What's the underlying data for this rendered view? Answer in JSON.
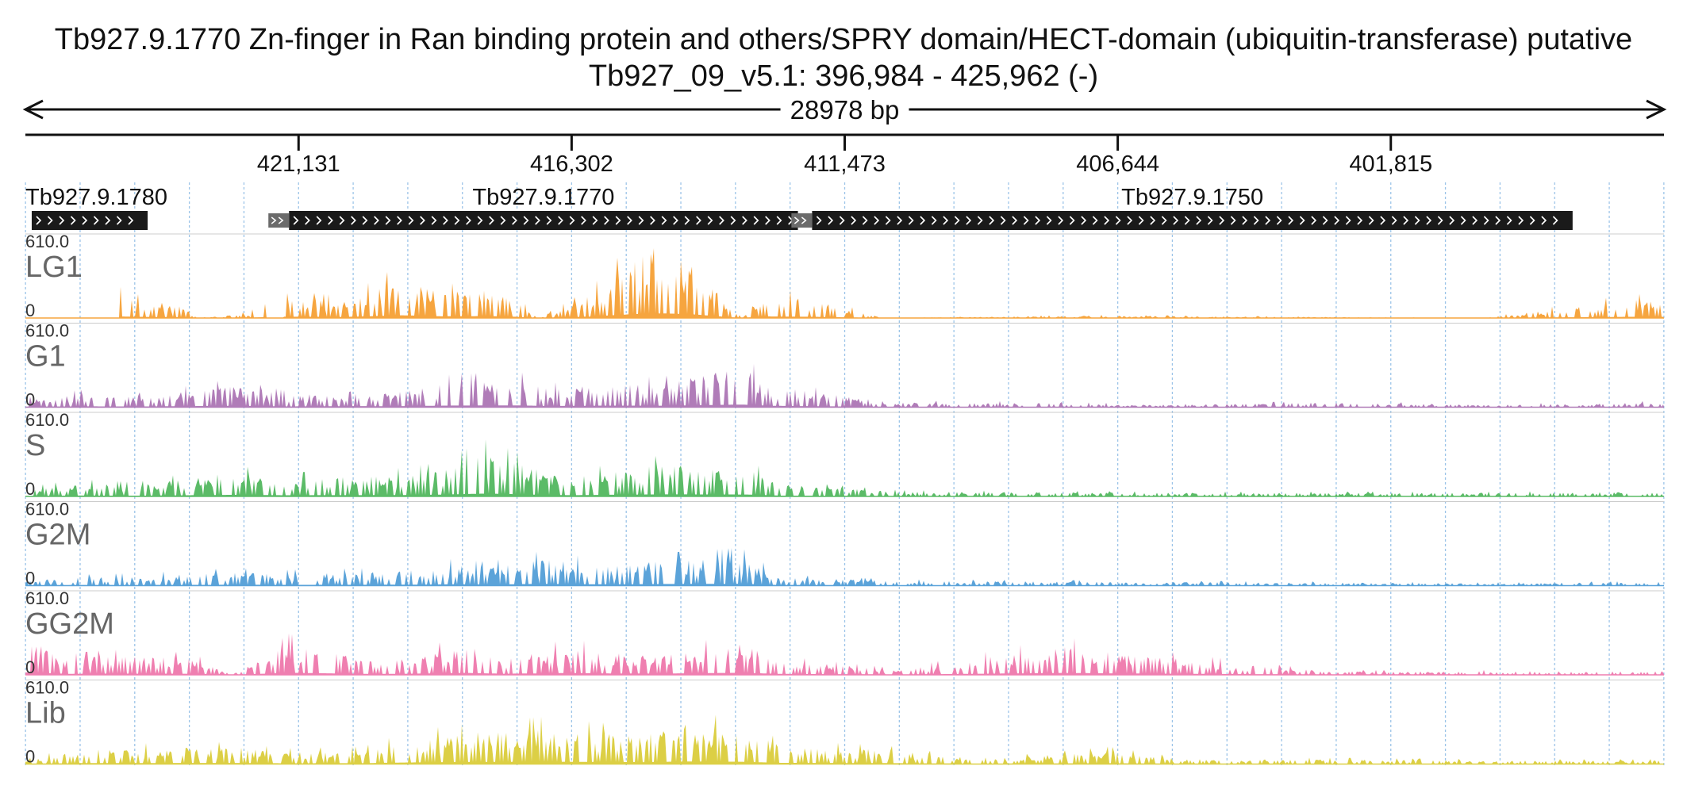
{
  "header": {
    "gene_title": "Tb927.9.1770  Zn-finger in Ran binding protein and others/SPRY domain/HECT-domain (ubiquitin-transferase)  putative",
    "locus": "Tb927_09_v5.1: 396,984 - 425,962 (-)",
    "span_label": "28978 bp"
  },
  "axis": {
    "ticks": [
      "421,131",
      "416,302",
      "411,473",
      "406,644",
      "401,815"
    ]
  },
  "genes": [
    {
      "name": "Tb927.9.1780",
      "label": "Tb927.9.1780"
    },
    {
      "name": "Tb927.9.1770",
      "label": "Tb927.9.1770"
    },
    {
      "name": "Tb927.9.1750",
      "label": "Tb927.9.1750"
    }
  ],
  "colors": {
    "LG1": "#f6a53f",
    "G1": "#b07cb8",
    "S": "#5bbb67",
    "G2M": "#5ba3d9",
    "GG2M": "#ef7fb0",
    "Lib": "#dccf45",
    "gene_box": "#1a1a1a",
    "grid": "#9cc4e8"
  },
  "chart_data": {
    "type": "area",
    "title": "Tb927.9.1770  Zn-finger in Ran binding protein and others/SPRY domain/HECT-domain (ubiquitin-transferase)  putative",
    "subtitle": "Tb927_09_v5.1: 396,984 - 425,962 (-)",
    "x_range": [
      425962,
      396984
    ],
    "x_direction": "reversed (minus strand)",
    "x_ticks": [
      421131,
      416302,
      411473,
      406644,
      401815
    ],
    "span_bp": 28978,
    "genes": [
      {
        "name": "Tb927.9.1780",
        "start": 423800,
        "end": 425850,
        "strand": "-"
      },
      {
        "name": "Tb927.9.1770",
        "start": 412300,
        "end": 421300,
        "strand": "-"
      },
      {
        "name": "Tb927.9.1750",
        "start": 398600,
        "end": 412050,
        "strand": "-"
      }
    ],
    "tracks": [
      {
        "name": "LG1",
        "min": 0,
        "max": 610.0
      },
      {
        "name": "G1",
        "min": 0,
        "max": 610.0
      },
      {
        "name": "S",
        "min": 0,
        "max": 610.0
      },
      {
        "name": "G2M",
        "min": 0,
        "max": 610.0
      },
      {
        "name": "GG2M",
        "min": 0,
        "max": 610.0
      },
      {
        "name": "Lib",
        "min": 0,
        "max": 610.0
      }
    ],
    "series": [
      {
        "name": "LG1",
        "x": [
          425500,
          424500,
          424000,
          423200,
          422900,
          422000,
          421600,
          421000,
          420300,
          419300,
          418600,
          417800,
          417300,
          416900,
          416000,
          415200,
          414700,
          414200,
          413300,
          412900,
          412000,
          410800,
          407200,
          400200,
          397600
        ],
        "values": [
          0,
          230,
          150,
          110,
          0,
          40,
          150,
          160,
          140,
          340,
          210,
          240,
          160,
          0,
          180,
          490,
          580,
          480,
          0,
          200,
          150,
          0,
          20,
          0,
          150
        ]
      },
      {
        "name": "G1",
        "x": [
          425962,
          425000,
          424000,
          423000,
          422300,
          421300,
          420000,
          419500,
          418400,
          417200,
          416700,
          415700,
          414700,
          413300,
          412700,
          410600,
          409000,
          405500,
          403000,
          400000,
          396984
        ],
        "values": [
          60,
          110,
          90,
          140,
          180,
          100,
          140,
          120,
          210,
          220,
          150,
          200,
          190,
          330,
          170,
          40,
          40,
          20,
          40,
          20,
          40
        ]
      },
      {
        "name": "S",
        "x": [
          425962,
          425000,
          424000,
          422300,
          421400,
          420000,
          419300,
          418700,
          417800,
          416900,
          416300,
          415700,
          414700,
          413200,
          412600,
          410500,
          405500,
          400000,
          396984
        ],
        "values": [
          60,
          110,
          90,
          200,
          150,
          160,
          180,
          210,
          360,
          220,
          150,
          200,
          260,
          240,
          100,
          40,
          30,
          30,
          40
        ]
      },
      {
        "name": "G2M",
        "x": [
          425962,
          425000,
          424000,
          422300,
          421400,
          420000,
          419000,
          418400,
          417800,
          416800,
          416200,
          415600,
          414800,
          413300,
          412600,
          410500,
          405500,
          400000,
          396984
        ],
        "values": [
          40,
          70,
          80,
          110,
          100,
          110,
          130,
          170,
          150,
          220,
          190,
          160,
          200,
          240,
          70,
          40,
          30,
          20,
          30
        ]
      },
      {
        "name": "GG2M",
        "x": [
          425962,
          425200,
          424500,
          423000,
          422300,
          421300,
          420000,
          419400,
          418200,
          417500,
          416300,
          415600,
          414800,
          413300,
          412600,
          410500,
          407600,
          406800,
          403000,
          400000,
          396984
        ],
        "values": [
          300,
          130,
          160,
          140,
          0,
          260,
          130,
          120,
          250,
          140,
          230,
          180,
          160,
          260,
          120,
          40,
          240,
          190,
          30,
          30,
          30
        ]
      },
      {
        "name": "Lib",
        "x": [
          425962,
          425000,
          424000,
          422300,
          421400,
          420000,
          419300,
          418700,
          417800,
          416700,
          415800,
          415000,
          414300,
          413300,
          412600,
          410800,
          409000,
          406800,
          405500,
          403000,
          400000,
          396984
        ],
        "values": [
          30,
          120,
          130,
          140,
          100,
          110,
          190,
          230,
          270,
          300,
          260,
          240,
          330,
          290,
          150,
          120,
          40,
          110,
          40,
          40,
          30,
          30
        ]
      }
    ]
  }
}
